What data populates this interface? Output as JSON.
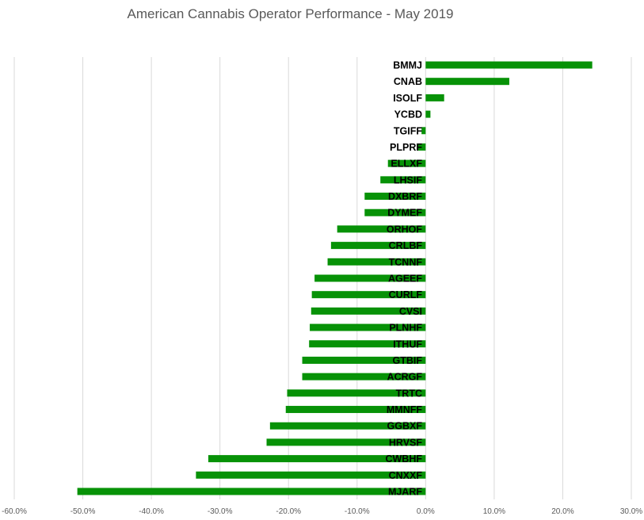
{
  "chart_data": {
    "type": "bar",
    "orientation": "horizontal",
    "title": "American Cannabis Operator Performance - May 2019",
    "xlabel": "",
    "ylabel": "",
    "xlim": [
      -60,
      30
    ],
    "xticks": [
      -60,
      -50,
      -40,
      -30,
      -20,
      -10,
      0,
      10,
      20,
      30
    ],
    "xtick_labels": [
      "-60.0%",
      "-50.0%",
      "-40.0%",
      "-30.0%",
      "-20.0%",
      "-10.0%",
      "0.0%",
      "10.0%",
      "20.0%",
      "30.0%"
    ],
    "grid": true,
    "color": "#079207",
    "categories": [
      "BMMJ",
      "CNAB",
      "ISOLF",
      "YCBD",
      "TGIFF",
      "PLPRF",
      "ELLXF",
      "LHSIF",
      "DXBRF",
      "DYMEF",
      "ORHOF",
      "CRLBF",
      "TCNNF",
      "AGEEF",
      "CURLF",
      "CVSI",
      "PLNHF",
      "ITHUF",
      "GTBIF",
      "ACRGF",
      "TRTC",
      "MMNFF",
      "GGBXF",
      "HRVSF",
      "CWBHF",
      "CNXXF",
      "MJARF"
    ],
    "values": [
      24.3,
      12.2,
      2.7,
      0.7,
      -0.6,
      -1.3,
      -5.5,
      -6.6,
      -8.9,
      -8.9,
      -12.9,
      -13.8,
      -14.3,
      -16.2,
      -16.6,
      -16.7,
      -16.9,
      -17.0,
      -18.0,
      -18.0,
      -20.2,
      -20.4,
      -22.7,
      -23.2,
      -31.7,
      -33.5,
      -50.8
    ]
  }
}
